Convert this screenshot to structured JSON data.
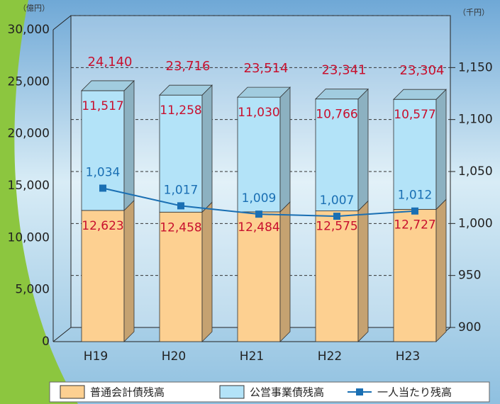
{
  "chart_data": {
    "type": "bar",
    "y_unit": "（億円）",
    "y2_unit": "（千円）",
    "categories": [
      "H19",
      "H20",
      "H21",
      "H22",
      "H23"
    ],
    "series": [
      {
        "name": "普通会計債残高",
        "color": "#fdd091",
        "values": [
          12623,
          12458,
          12484,
          12575,
          12727
        ],
        "value_labels": [
          "12,623",
          "12,458",
          "12,484",
          "12,575",
          "12,727"
        ]
      },
      {
        "name": "公営事業債残高",
        "color": "#b3e3f8",
        "values": [
          11517,
          11258,
          11030,
          10766,
          10577
        ],
        "value_labels": [
          "11,517",
          "11,258",
          "11,030",
          "10,766",
          "10,577"
        ]
      },
      {
        "name": "一人当たり残高",
        "type": "line",
        "axis": "y2",
        "color": "#1a6fb3",
        "values": [
          1034,
          1017,
          1009,
          1007,
          1012
        ],
        "value_labels": [
          "1,034",
          "1,017",
          "1,009",
          "1,007",
          "1,012"
        ]
      }
    ],
    "totals": [
      24140,
      23716,
      23514,
      23341,
      23304
    ],
    "total_labels": [
      "24,140",
      "23,716",
      "23,514",
      "23,341",
      "23,304"
    ],
    "ylim": [
      0,
      30000
    ],
    "yticks": [
      0,
      {
        "value": 5000,
        "label": "5,000"
      },
      {
        "value": 10000,
        "label": "10,000"
      },
      {
        "value": 15000,
        "label": "15,000"
      },
      {
        "value": 20000,
        "label": "20,000"
      },
      {
        "value": 25000,
        "label": "25,000"
      },
      {
        "value": 30000,
        "label": "30,000"
      }
    ],
    "y2lim": [
      900,
      1200
    ],
    "y2ticks": [
      900,
      950,
      {
        "value": 1000,
        "label": "1,000"
      },
      {
        "value": 1050,
        "label": "1,050"
      },
      {
        "value": 1100,
        "label": "1,100"
      },
      {
        "value": 1150,
        "label": "1,150"
      }
    ],
    "grid": true
  }
}
